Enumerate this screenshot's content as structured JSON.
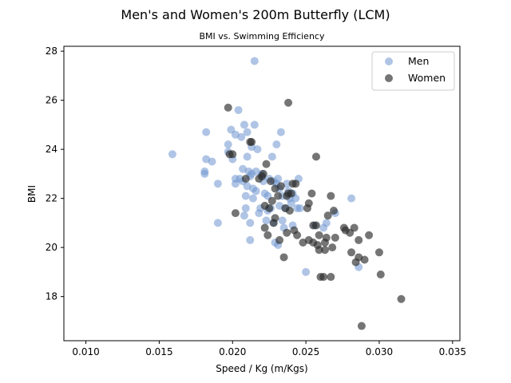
{
  "chart_data": {
    "type": "scatter",
    "title": "Men's and Women's 200m Butterfly (LCM)",
    "subtitle": "BMI vs. Swimming Efficiency",
    "xlabel": "Speed / Kg (m/Kgs)",
    "ylabel": "BMI",
    "xlim": [
      0.0085,
      0.0355
    ],
    "ylim": [
      16.2,
      28.2
    ],
    "xticks": [
      0.01,
      0.015,
      0.02,
      0.025,
      0.03,
      0.035
    ],
    "xtick_labels": [
      "0.010",
      "0.015",
      "0.020",
      "0.025",
      "0.030",
      "0.035"
    ],
    "yticks": [
      18,
      20,
      22,
      24,
      26,
      28
    ],
    "ytick_labels": [
      "18",
      "20",
      "22",
      "24",
      "26",
      "28"
    ],
    "grid": false,
    "legend_position": "top-right",
    "series": [
      {
        "name": "Men",
        "color": "#6f96cf",
        "alpha": 0.55,
        "points": [
          [
            0.0159,
            23.8
          ],
          [
            0.0181,
            23.0
          ],
          [
            0.0181,
            23.1
          ],
          [
            0.0182,
            24.7
          ],
          [
            0.0182,
            23.6
          ],
          [
            0.0186,
            23.5
          ],
          [
            0.019,
            22.6
          ],
          [
            0.019,
            21.0
          ],
          [
            0.0197,
            24.2
          ],
          [
            0.0197,
            23.9
          ],
          [
            0.0199,
            24.8
          ],
          [
            0.02,
            23.6
          ],
          [
            0.0202,
            22.8
          ],
          [
            0.0202,
            22.6
          ],
          [
            0.0202,
            24.6
          ],
          [
            0.0204,
            25.6
          ],
          [
            0.0205,
            22.8
          ],
          [
            0.0206,
            24.5
          ],
          [
            0.0207,
            22.7
          ],
          [
            0.0207,
            23.2
          ],
          [
            0.0208,
            25.0
          ],
          [
            0.0208,
            21.3
          ],
          [
            0.0209,
            22.1
          ],
          [
            0.0209,
            21.6
          ],
          [
            0.021,
            24.7
          ],
          [
            0.021,
            23.7
          ],
          [
            0.021,
            22.5
          ],
          [
            0.0211,
            23.1
          ],
          [
            0.0212,
            20.3
          ],
          [
            0.0212,
            22.9
          ],
          [
            0.0212,
            21.0
          ],
          [
            0.0213,
            24.1
          ],
          [
            0.0213,
            23.0
          ],
          [
            0.0214,
            22.4
          ],
          [
            0.0214,
            22.0
          ],
          [
            0.0215,
            25.0
          ],
          [
            0.0215,
            27.6
          ],
          [
            0.0216,
            23.1
          ],
          [
            0.0216,
            22.3
          ],
          [
            0.0217,
            24.0
          ],
          [
            0.0218,
            21.4
          ],
          [
            0.0219,
            21.6
          ],
          [
            0.022,
            23.0
          ],
          [
            0.022,
            22.9
          ],
          [
            0.0221,
            22.7
          ],
          [
            0.0222,
            22.2
          ],
          [
            0.0223,
            21.1
          ],
          [
            0.0224,
            22.1
          ],
          [
            0.0224,
            21.5
          ],
          [
            0.0225,
            22.8
          ],
          [
            0.0226,
            21.6
          ],
          [
            0.0227,
            23.7
          ],
          [
            0.0228,
            22.7
          ],
          [
            0.0228,
            21.0
          ],
          [
            0.0229,
            20.2
          ],
          [
            0.023,
            22.6
          ],
          [
            0.023,
            24.2
          ],
          [
            0.0231,
            22.8
          ],
          [
            0.0231,
            20.1
          ],
          [
            0.0232,
            22.4
          ],
          [
            0.0232,
            21.7
          ],
          [
            0.0233,
            24.7
          ],
          [
            0.0234,
            22.1
          ],
          [
            0.0234,
            21.1
          ],
          [
            0.0235,
            20.8
          ],
          [
            0.0236,
            21.6
          ],
          [
            0.0237,
            22.6
          ],
          [
            0.0238,
            22.3
          ],
          [
            0.0239,
            22.0
          ],
          [
            0.024,
            21.8
          ],
          [
            0.0241,
            22.2
          ],
          [
            0.0241,
            20.9
          ],
          [
            0.0243,
            22.0
          ],
          [
            0.0244,
            21.6
          ],
          [
            0.0245,
            22.8
          ],
          [
            0.0246,
            21.6
          ],
          [
            0.025,
            19.0
          ],
          [
            0.0256,
            20.9
          ],
          [
            0.0262,
            20.8
          ],
          [
            0.0264,
            21.0
          ],
          [
            0.027,
            21.4
          ],
          [
            0.0281,
            22.0
          ],
          [
            0.0286,
            19.2
          ]
        ]
      },
      {
        "name": "Women",
        "color": "#2b2b2b",
        "alpha": 0.65,
        "points": [
          [
            0.0197,
            25.7
          ],
          [
            0.0198,
            23.8
          ],
          [
            0.02,
            23.8
          ],
          [
            0.0202,
            21.4
          ],
          [
            0.0209,
            22.8
          ],
          [
            0.0212,
            24.3
          ],
          [
            0.0213,
            24.3
          ],
          [
            0.0218,
            22.8
          ],
          [
            0.022,
            22.9
          ],
          [
            0.0221,
            23.0
          ],
          [
            0.0222,
            20.8
          ],
          [
            0.0222,
            21.7
          ],
          [
            0.0223,
            23.4
          ],
          [
            0.0224,
            20.5
          ],
          [
            0.0225,
            21.6
          ],
          [
            0.0226,
            22.7
          ],
          [
            0.0227,
            21.9
          ],
          [
            0.0228,
            21.0
          ],
          [
            0.0229,
            21.2
          ],
          [
            0.0229,
            22.4
          ],
          [
            0.0231,
            22.1
          ],
          [
            0.0232,
            20.3
          ],
          [
            0.0233,
            22.5
          ],
          [
            0.0235,
            19.6
          ],
          [
            0.0236,
            21.6
          ],
          [
            0.0237,
            20.6
          ],
          [
            0.0237,
            22.1
          ],
          [
            0.0238,
            25.9
          ],
          [
            0.0238,
            22.2
          ],
          [
            0.0239,
            21.5
          ],
          [
            0.024,
            22.2
          ],
          [
            0.0241,
            22.6
          ],
          [
            0.0242,
            20.7
          ],
          [
            0.0243,
            22.6
          ],
          [
            0.0244,
            20.5
          ],
          [
            0.0248,
            20.2
          ],
          [
            0.0251,
            21.6
          ],
          [
            0.0252,
            21.8
          ],
          [
            0.0252,
            20.3
          ],
          [
            0.0254,
            22.2
          ],
          [
            0.0255,
            20.9
          ],
          [
            0.0255,
            20.2
          ],
          [
            0.0257,
            20.9
          ],
          [
            0.0257,
            23.7
          ],
          [
            0.0258,
            20.1
          ],
          [
            0.0259,
            19.9
          ],
          [
            0.0259,
            20.5
          ],
          [
            0.026,
            18.8
          ],
          [
            0.0262,
            18.8
          ],
          [
            0.0263,
            20.2
          ],
          [
            0.0263,
            19.9
          ],
          [
            0.0264,
            20.4
          ],
          [
            0.0265,
            21.3
          ],
          [
            0.0267,
            22.1
          ],
          [
            0.0267,
            18.8
          ],
          [
            0.0268,
            20.0
          ],
          [
            0.0269,
            21.5
          ],
          [
            0.027,
            20.4
          ],
          [
            0.0276,
            20.8
          ],
          [
            0.0277,
            20.7
          ],
          [
            0.028,
            20.6
          ],
          [
            0.0281,
            19.8
          ],
          [
            0.0283,
            20.8
          ],
          [
            0.0284,
            19.4
          ],
          [
            0.0286,
            19.6
          ],
          [
            0.0286,
            20.3
          ],
          [
            0.0288,
            16.8
          ],
          [
            0.029,
            19.5
          ],
          [
            0.0293,
            20.5
          ],
          [
            0.03,
            19.8
          ],
          [
            0.0301,
            18.9
          ],
          [
            0.0315,
            17.9
          ]
        ]
      }
    ]
  }
}
